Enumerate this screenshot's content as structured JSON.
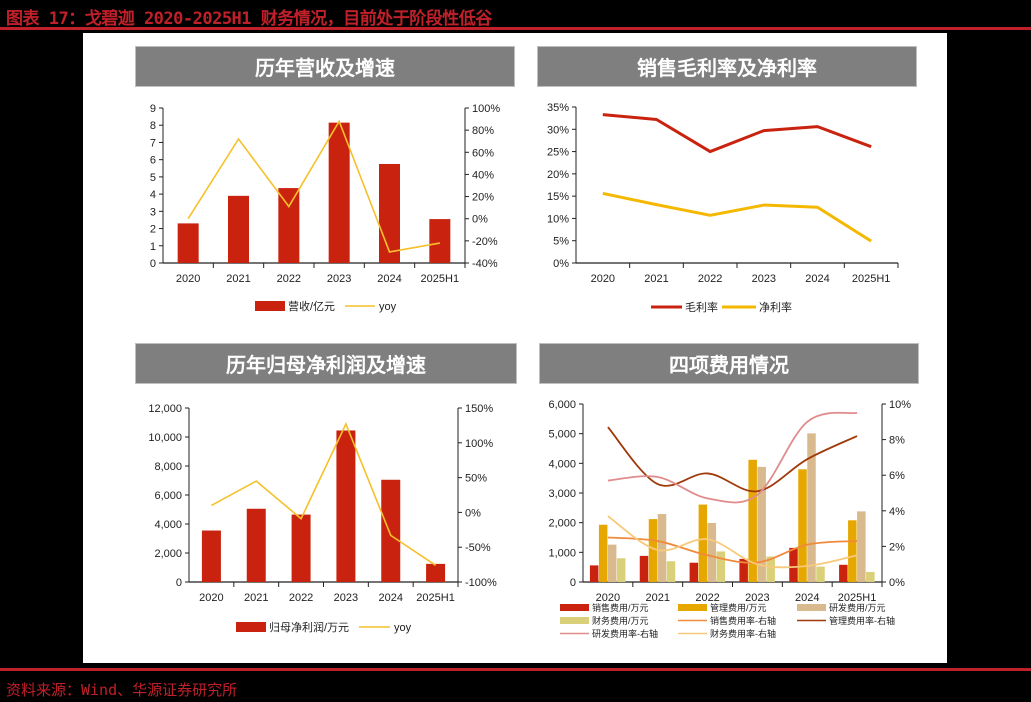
{
  "figure_title": "图表 17：戈碧迦 2020-2025H1 财务情况，目前处于阶段性低谷",
  "source": "资料来源：Wind、华源证券研究所",
  "panels": {
    "revenue": {
      "title": "历年营收及增速"
    },
    "margin": {
      "title": "销售毛利率及净利率"
    },
    "profit": {
      "title": "历年归母净利润及增速"
    },
    "expense": {
      "title": "四项费用情况"
    }
  },
  "colors": {
    "red": "#c9230f",
    "yellow": "#f5c12a",
    "mgmt": "#e6a800",
    "rd": "#d9b98e",
    "fin": "#dbd07a"
  },
  "chart_data": [
    {
      "type": "bar",
      "title": "历年营收及增速",
      "categories": [
        "2020",
        "2021",
        "2022",
        "2023",
        "2024",
        "2025H1"
      ],
      "series": [
        {
          "name": "营收/亿元",
          "type": "bar",
          "axis": "left",
          "values": [
            2.3,
            3.9,
            4.35,
            8.15,
            5.75,
            2.55
          ]
        },
        {
          "name": "yoy",
          "type": "line",
          "axis": "right",
          "values": [
            0.0,
            0.72,
            0.11,
            0.88,
            -0.3,
            -0.22
          ]
        }
      ],
      "yticks_left": [
        "0",
        "1",
        "2",
        "3",
        "4",
        "5",
        "6",
        "7",
        "8",
        "9"
      ],
      "yticks_right": [
        "-40%",
        "-20%",
        "0%",
        "20%",
        "40%",
        "60%",
        "80%",
        "100%"
      ],
      "ylim_left": [
        0,
        9
      ],
      "ylim_right": [
        -0.4,
        1.0
      ],
      "legend": [
        "营收/亿元",
        "yoy"
      ],
      "legend_position": "bottom"
    },
    {
      "type": "line",
      "title": "销售毛利率及净利率",
      "categories": [
        "2020",
        "2021",
        "2022",
        "2023",
        "2024",
        "2025H1"
      ],
      "series": [
        {
          "name": "毛利率",
          "values": [
            0.333,
            0.322,
            0.25,
            0.297,
            0.306,
            0.261
          ]
        },
        {
          "name": "净利率",
          "values": [
            0.156,
            0.131,
            0.107,
            0.13,
            0.125,
            0.049
          ]
        }
      ],
      "yticks": [
        "0%",
        "5%",
        "10%",
        "15%",
        "20%",
        "25%",
        "30%",
        "35%"
      ],
      "ylim": [
        0,
        0.35
      ],
      "legend": [
        "毛利率",
        "净利率"
      ],
      "legend_position": "bottom"
    },
    {
      "type": "bar",
      "title": "历年归母净利润及增速",
      "categories": [
        "2020",
        "2021",
        "2022",
        "2023",
        "2024",
        "2025H1"
      ],
      "series": [
        {
          "name": "归母净利润/万元",
          "type": "bar",
          "axis": "left",
          "values": [
            3550,
            5050,
            4650,
            10450,
            7050,
            1250
          ]
        },
        {
          "name": "yoy",
          "type": "line",
          "axis": "right",
          "values": [
            0.1,
            0.45,
            -0.09,
            1.27,
            -0.33,
            -0.76
          ]
        }
      ],
      "yticks_left": [
        "0",
        "2,000",
        "4,000",
        "6,000",
        "8,000",
        "10,000",
        "12,000"
      ],
      "yticks_right": [
        "-100%",
        "-50%",
        "0%",
        "50%",
        "100%",
        "150%"
      ],
      "ylim_left": [
        0,
        12000
      ],
      "ylim_right": [
        -1.0,
        1.5
      ],
      "legend": [
        "归母净利润/万元",
        "yoy"
      ],
      "legend_position": "bottom"
    },
    {
      "type": "bar",
      "title": "四项费用情况",
      "categories": [
        "2020",
        "2021",
        "2022",
        "2023",
        "2024",
        "2025H1"
      ],
      "series": [
        {
          "name": "销售费用/万元",
          "type": "bar",
          "axis": "left",
          "values": [
            560,
            880,
            650,
            780,
            1150,
            580
          ]
        },
        {
          "name": "管理费用/万元",
          "type": "bar",
          "axis": "left",
          "values": [
            1930,
            2120,
            2610,
            4120,
            3800,
            2080
          ]
        },
        {
          "name": "研发费用/万元",
          "type": "bar",
          "axis": "left",
          "values": [
            1260,
            2290,
            1990,
            3880,
            5010,
            2380
          ]
        },
        {
          "name": "财务费用/万元",
          "type": "bar",
          "axis": "left",
          "values": [
            800,
            700,
            1030,
            860,
            520,
            340
          ]
        },
        {
          "name": "销售费用率-右轴",
          "type": "line",
          "axis": "right",
          "values": [
            0.025,
            0.023,
            0.015,
            0.011,
            0.021,
            0.023
          ]
        },
        {
          "name": "管理费用率-右轴",
          "type": "line",
          "axis": "right",
          "values": [
            0.087,
            0.055,
            0.061,
            0.051,
            0.069,
            0.082
          ]
        },
        {
          "name": "研发费用率-右轴",
          "type": "line",
          "axis": "right",
          "values": [
            0.057,
            0.059,
            0.047,
            0.049,
            0.09,
            0.095
          ]
        },
        {
          "name": "财务费用率-右轴",
          "type": "line",
          "axis": "right",
          "values": [
            0.037,
            0.018,
            0.024,
            0.01,
            0.009,
            0.015
          ]
        }
      ],
      "yticks_left": [
        "0",
        "1,000",
        "2,000",
        "3,000",
        "4,000",
        "5,000",
        "6,000"
      ],
      "yticks_right": [
        "0%",
        "2%",
        "4%",
        "6%",
        "8%",
        "10%"
      ],
      "ylim_left": [
        0,
        6000
      ],
      "ylim_right": [
        0,
        0.1
      ],
      "legend": [
        "销售费用/万元",
        "管理费用/万元",
        "研发费用/万元",
        "财务费用/万元",
        "销售费用率-右轴",
        "管理费用率-右轴",
        "研发费用率-右轴",
        "财务费用率-右轴"
      ],
      "legend_position": "bottom"
    }
  ]
}
